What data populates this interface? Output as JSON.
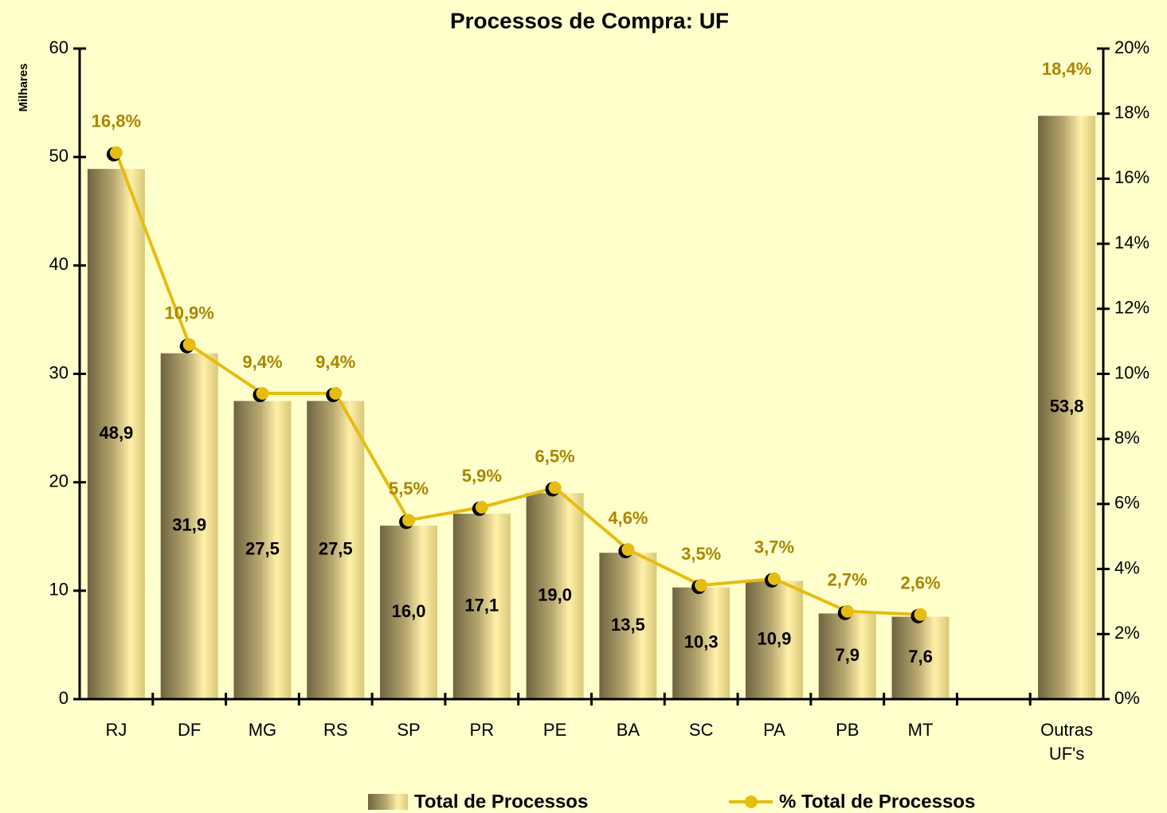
{
  "chart_data": {
    "type": "bar_line",
    "title": "Processos de Compra: UF",
    "ylabel": "Milhares",
    "categories": [
      "RJ",
      "DF",
      "MG",
      "RS",
      "SP",
      "PR",
      "PE",
      "BA",
      "SC",
      "PA",
      "PB",
      "MT",
      null,
      "Outras UF's"
    ],
    "series": [
      {
        "name": "Total de Processos",
        "type": "bar",
        "color": "#e8d98a",
        "values": [
          48.9,
          31.9,
          27.5,
          27.5,
          16.0,
          17.1,
          19.0,
          13.5,
          10.3,
          10.9,
          7.9,
          7.6,
          null,
          53.8
        ],
        "value_labels": [
          "48,9",
          "31,9",
          "27,5",
          "27,5",
          "16,0",
          "17,1",
          "19,0",
          "13,5",
          "10,3",
          "10,9",
          "7,9",
          "7,6",
          null,
          "53,8"
        ]
      },
      {
        "name": "% Total de Processos",
        "type": "line",
        "axis": "y2",
        "color": "#e6bc12",
        "values": [
          16.8,
          10.9,
          9.4,
          9.4,
          5.5,
          5.9,
          6.5,
          4.6,
          3.5,
          3.7,
          2.7,
          2.6,
          null,
          18.4
        ],
        "value_labels": [
          "16,8%",
          "10,9%",
          "9,4%",
          "9,4%",
          "5,5%",
          "5,9%",
          "6,5%",
          "4,6%",
          "3,5%",
          "3,7%",
          "2,7%",
          "2,6%",
          null,
          "18,4%"
        ]
      }
    ],
    "ylim": [
      0,
      60
    ],
    "yticks": [
      0,
      10,
      20,
      30,
      40,
      50,
      60
    ],
    "y2lim": [
      0,
      20
    ],
    "y2ticks": [
      {
        "value": 0,
        "label": "0%"
      },
      {
        "value": 2,
        "label": "2%"
      },
      {
        "value": 4,
        "label": "4%"
      },
      {
        "value": 6,
        "label": "6%"
      },
      {
        "value": 8,
        "label": "8%"
      },
      {
        "value": 10,
        "label": "10%"
      },
      {
        "value": 12,
        "label": "12%"
      },
      {
        "value": 14,
        "label": "14%"
      },
      {
        "value": 16,
        "label": "16%"
      },
      {
        "value": 18,
        "label": "18%"
      },
      {
        "value": 20,
        "label": "20%"
      }
    ],
    "legend": "bottom"
  }
}
